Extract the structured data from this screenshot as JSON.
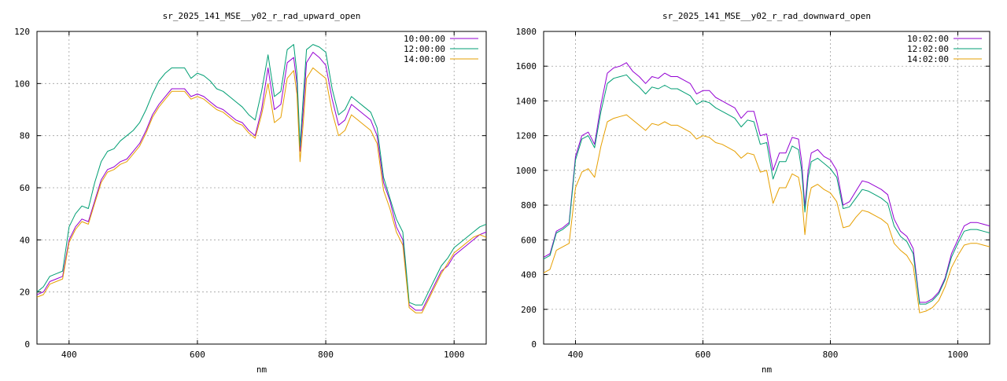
{
  "chart_data": [
    {
      "type": "line",
      "title": "sr_2025_141_MSE__y02_r_rad_upward_open",
      "xlabel": "nm",
      "ylabel": "",
      "xlim": [
        350,
        1050
      ],
      "ylim": [
        0,
        120
      ],
      "xticks": [
        400,
        600,
        800,
        1000
      ],
      "yticks": [
        0,
        20,
        40,
        60,
        80,
        100,
        120
      ],
      "grid": true,
      "legend_position": "top-right",
      "x": [
        350,
        360,
        370,
        380,
        390,
        400,
        410,
        420,
        430,
        440,
        450,
        460,
        470,
        480,
        490,
        500,
        510,
        520,
        530,
        540,
        550,
        560,
        570,
        580,
        590,
        600,
        610,
        620,
        630,
        640,
        650,
        660,
        670,
        680,
        690,
        700,
        710,
        720,
        730,
        740,
        750,
        755,
        760,
        765,
        770,
        780,
        790,
        800,
        810,
        820,
        830,
        840,
        850,
        860,
        870,
        880,
        890,
        900,
        910,
        920,
        930,
        940,
        950,
        960,
        970,
        980,
        990,
        1000,
        1010,
        1020,
        1030,
        1040,
        1050
      ],
      "series": [
        {
          "name": "10:00:00",
          "color": "#9400d3",
          "values": [
            19,
            20,
            24,
            25,
            26,
            40,
            45,
            48,
            47,
            55,
            63,
            67,
            68,
            70,
            71,
            74,
            77,
            82,
            88,
            92,
            95,
            98,
            98,
            98,
            95,
            96,
            95,
            93,
            91,
            90,
            88,
            86,
            85,
            82,
            80,
            90,
            106,
            90,
            92,
            108,
            110,
            100,
            74,
            90,
            108,
            112,
            110,
            107,
            94,
            84,
            86,
            92,
            90,
            88,
            86,
            80,
            62,
            55,
            45,
            40,
            15,
            13,
            13,
            18,
            23,
            28,
            30,
            34,
            36,
            38,
            40,
            42,
            43
          ]
        },
        {
          "name": "12:00:00",
          "color": "#009e73",
          "values": [
            20,
            22,
            26,
            27,
            28,
            45,
            50,
            53,
            52,
            62,
            70,
            74,
            75,
            78,
            80,
            82,
            85,
            90,
            96,
            101,
            104,
            106,
            106,
            106,
            102,
            104,
            103,
            101,
            98,
            97,
            95,
            93,
            91,
            88,
            86,
            97,
            111,
            95,
            97,
            113,
            115,
            104,
            76,
            95,
            113,
            115,
            114,
            112,
            98,
            88,
            90,
            95,
            93,
            91,
            89,
            83,
            64,
            56,
            48,
            43,
            16,
            15,
            15,
            20,
            25,
            30,
            33,
            37,
            39,
            41,
            43,
            45,
            46
          ]
        },
        {
          "name": "14:00:00",
          "color": "#e69f00",
          "values": [
            18,
            19,
            23,
            24,
            25,
            39,
            44,
            47,
            46,
            54,
            62,
            66,
            67,
            69,
            70,
            73,
            76,
            81,
            87,
            91,
            94,
            97,
            97,
            97,
            94,
            95,
            94,
            92,
            90,
            89,
            87,
            85,
            84,
            81,
            79,
            88,
            100,
            85,
            87,
            102,
            105,
            96,
            70,
            85,
            102,
            106,
            104,
            102,
            89,
            80,
            82,
            88,
            86,
            84,
            82,
            77,
            59,
            52,
            43,
            38,
            14,
            12,
            12,
            17,
            22,
            27,
            31,
            35,
            37,
            39,
            41,
            42,
            41
          ]
        }
      ]
    },
    {
      "type": "line",
      "title": "sr_2025_141_MSE__y02_r_rad_downward_open",
      "xlabel": "nm",
      "ylabel": "",
      "xlim": [
        350,
        1050
      ],
      "ylim": [
        0,
        1800
      ],
      "xticks": [
        400,
        600,
        800,
        1000
      ],
      "yticks": [
        0,
        200,
        400,
        600,
        800,
        1000,
        1200,
        1400,
        1600,
        1800
      ],
      "grid": true,
      "legend_position": "top-right",
      "x": [
        350,
        360,
        370,
        380,
        390,
        400,
        410,
        420,
        430,
        440,
        450,
        460,
        470,
        480,
        490,
        500,
        510,
        520,
        530,
        540,
        550,
        560,
        570,
        580,
        590,
        600,
        610,
        620,
        630,
        640,
        650,
        660,
        670,
        680,
        690,
        700,
        710,
        720,
        730,
        740,
        750,
        755,
        760,
        765,
        770,
        780,
        790,
        800,
        810,
        820,
        830,
        840,
        850,
        860,
        870,
        880,
        890,
        900,
        910,
        920,
        930,
        940,
        950,
        960,
        970,
        980,
        990,
        1000,
        1010,
        1020,
        1030,
        1040,
        1050
      ],
      "series": [
        {
          "name": "10:02:00",
          "color": "#9400d3",
          "values": [
            500,
            520,
            650,
            670,
            700,
            1080,
            1200,
            1220,
            1150,
            1380,
            1560,
            1590,
            1600,
            1620,
            1570,
            1540,
            1500,
            1540,
            1530,
            1560,
            1540,
            1540,
            1520,
            1500,
            1440,
            1460,
            1460,
            1420,
            1400,
            1380,
            1360,
            1300,
            1340,
            1340,
            1200,
            1210,
            1000,
            1100,
            1100,
            1190,
            1180,
            1050,
            790,
            1000,
            1100,
            1120,
            1080,
            1060,
            1000,
            800,
            820,
            880,
            940,
            930,
            910,
            890,
            860,
            720,
            650,
            620,
            550,
            240,
            240,
            260,
            300,
            380,
            520,
            600,
            680,
            700,
            700,
            690,
            680
          ]
        },
        {
          "name": "12:02:00",
          "color": "#009e73",
          "values": [
            490,
            510,
            640,
            660,
            690,
            1060,
            1180,
            1200,
            1130,
            1340,
            1500,
            1530,
            1540,
            1550,
            1510,
            1480,
            1440,
            1480,
            1470,
            1490,
            1470,
            1470,
            1450,
            1430,
            1380,
            1400,
            1390,
            1360,
            1340,
            1320,
            1300,
            1250,
            1290,
            1280,
            1150,
            1160,
            950,
            1050,
            1050,
            1140,
            1120,
            1000,
            760,
            960,
            1050,
            1070,
            1040,
            1010,
            960,
            780,
            790,
            840,
            890,
            880,
            860,
            840,
            810,
            680,
            620,
            590,
            520,
            230,
            230,
            250,
            290,
            370,
            500,
            580,
            650,
            660,
            660,
            650,
            640
          ]
        },
        {
          "name": "14:02:00",
          "color": "#e69f00",
          "values": [
            410,
            430,
            540,
            560,
            580,
            900,
            990,
            1010,
            960,
            1140,
            1280,
            1300,
            1310,
            1320,
            1290,
            1260,
            1230,
            1270,
            1260,
            1280,
            1260,
            1260,
            1240,
            1220,
            1180,
            1200,
            1190,
            1160,
            1150,
            1130,
            1110,
            1070,
            1100,
            1090,
            990,
            1000,
            810,
            900,
            900,
            980,
            960,
            860,
            630,
            820,
            900,
            920,
            890,
            870,
            820,
            670,
            680,
            730,
            770,
            760,
            740,
            720,
            690,
            580,
            540,
            510,
            450,
            180,
            190,
            210,
            250,
            330,
            440,
            510,
            570,
            580,
            580,
            570,
            560
          ]
        }
      ]
    }
  ]
}
